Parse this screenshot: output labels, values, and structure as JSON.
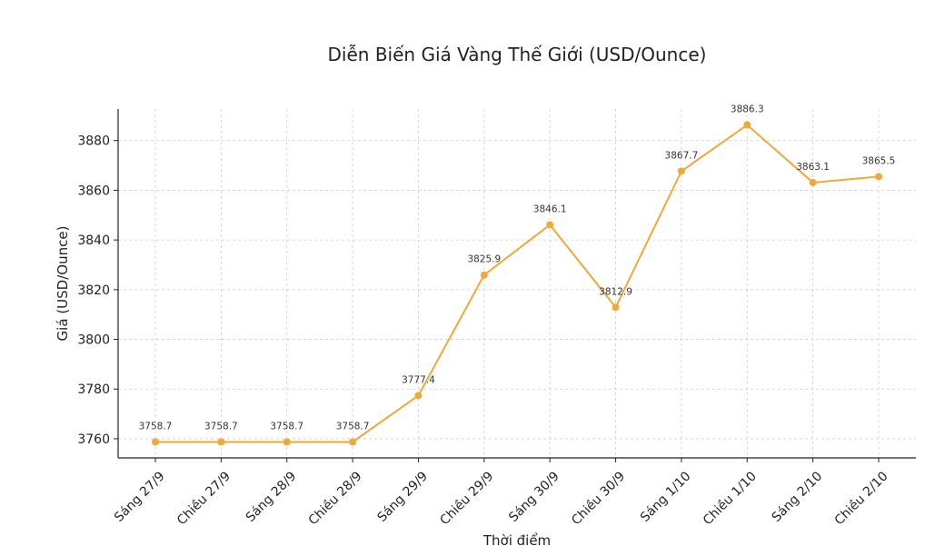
{
  "chart_data": {
    "type": "line",
    "title": "Diễn Biến Giá Vàng Thế Giới (USD/Ounce)",
    "xlabel": "Thời điểm",
    "ylabel": "Giá (USD/Ounce)",
    "categories": [
      "Sáng 27/9",
      "Chiều 27/9",
      "Sáng 28/9",
      "Chiều 28/9",
      "Sáng 29/9",
      "Chiều 29/9",
      "Sáng 30/9",
      "Chiều 30/9",
      "Sáng 1/10",
      "Chiều 1/10",
      "Sáng 2/10",
      "Chiều 2/10"
    ],
    "values": [
      3758.7,
      3758.7,
      3758.7,
      3758.7,
      3777.4,
      3825.9,
      3846.1,
      3812.9,
      3867.7,
      3886.3,
      3863.1,
      3865.5
    ],
    "data_labels": [
      "3758.7",
      "3758.7",
      "3758.7",
      "3758.7",
      "3777.4",
      "3825.9",
      "3846.1",
      "3812.9",
      "3867.7",
      "3886.3",
      "3863.1",
      "3865.5"
    ],
    "yticks": [
      "3760",
      "3780",
      "3800",
      "3820",
      "3840",
      "3860",
      "3880"
    ],
    "ytick_values": [
      3760,
      3780,
      3800,
      3820,
      3840,
      3860,
      3880
    ],
    "ylim": [
      3752.3,
      3892.7
    ],
    "grid": true,
    "color": "#f0a83a"
  }
}
